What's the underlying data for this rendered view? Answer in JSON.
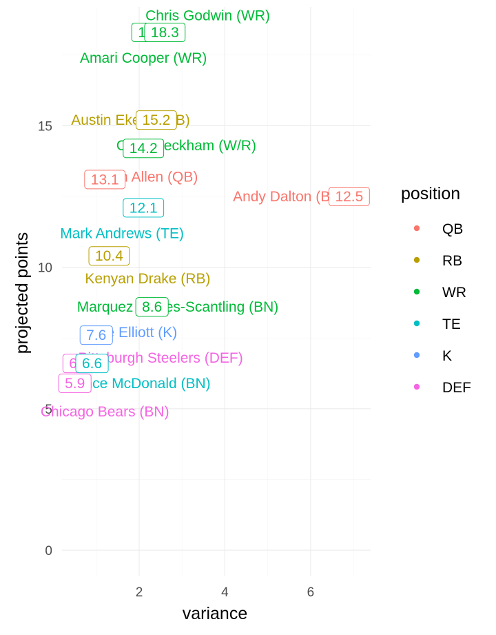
{
  "chart_data": {
    "type": "scatter",
    "title": "",
    "xlabel": "variance",
    "ylabel": "projected points",
    "xlim": [
      0.2,
      7.4
    ],
    "ylim": [
      -0.9,
      19.2
    ],
    "x_ticks": [
      2,
      4,
      6
    ],
    "y_ticks": [
      0,
      5,
      10,
      15
    ],
    "grid": true,
    "legend": {
      "title": "position",
      "placement": "right",
      "entries": [
        {
          "name": "QB",
          "color": "#F8766D"
        },
        {
          "name": "RB",
          "color": "#B79F00"
        },
        {
          "name": "WR",
          "color": "#00BA38"
        },
        {
          "name": "TE",
          "color": "#00BFC4"
        },
        {
          "name": "K",
          "color": "#619CFF"
        },
        {
          "name": "DEF",
          "color": "#F564E3"
        }
      ]
    },
    "points": [
      {
        "label": "Chris Godwin (WR)",
        "position": "WR",
        "x": 2.3,
        "y": 18.3,
        "value_label": "18.3",
        "label_x": 3.6,
        "label_y": 18.9
      },
      {
        "label": "Amari Cooper (WR)",
        "position": "WR",
        "x": 2.6,
        "y": 18.3,
        "value_label": "18.3",
        "label_x": 2.1,
        "label_y": 17.4
      },
      {
        "label": "Austin Ekeler (RB)",
        "position": "RB",
        "x": 2.4,
        "y": 15.2,
        "value_label": "15.2",
        "label_x": 1.8,
        "label_y": 15.2
      },
      {
        "label": "Odell Beckham (W/R)",
        "position": "WR",
        "x": 2.1,
        "y": 14.2,
        "value_label": "14.2",
        "label_x": 3.1,
        "label_y": 14.3
      },
      {
        "label": "Josh Allen (QB)",
        "position": "QB",
        "x": 1.2,
        "y": 13.1,
        "value_label": "13.1",
        "label_x": 2.2,
        "label_y": 13.2
      },
      {
        "label": "Andy Dalton (BN)",
        "position": "QB",
        "x": 6.9,
        "y": 12.5,
        "value_label": "12.5",
        "label_x": 5.5,
        "label_y": 12.5
      },
      {
        "label": "Mark Andrews (TE)",
        "position": "TE",
        "x": 2.1,
        "y": 12.1,
        "value_label": "12.1",
        "label_x": 1.6,
        "label_y": 11.2
      },
      {
        "label": "Kenyan Drake (RB)",
        "position": "RB",
        "x": 1.3,
        "y": 10.4,
        "value_label": "10.4",
        "label_x": 2.2,
        "label_y": 9.6
      },
      {
        "label": "Marquez Valdes-Scantling (BN)",
        "position": "WR",
        "x": 2.3,
        "y": 8.6,
        "value_label": "8.6",
        "label_x": 2.9,
        "label_y": 8.6
      },
      {
        "label": "Jake Elliott (K)",
        "position": "K",
        "x": 1.0,
        "y": 7.6,
        "value_label": "7.6",
        "label_x": 1.8,
        "label_y": 7.7
      },
      {
        "label": "Pittsburgh Steelers (DEF)",
        "position": "DEF",
        "x": 0.6,
        "y": 6.6,
        "value_label": "6.6",
        "label_x": 2.5,
        "label_y": 6.8
      },
      {
        "label": "Vance McDonald (BN)",
        "position": "TE",
        "x": 0.9,
        "y": 6.6,
        "value_label": "6.6",
        "label_x": 2.0,
        "label_y": 5.9
      },
      {
        "label": "Chicago Bears (BN)",
        "position": "DEF",
        "x": 0.5,
        "y": 5.9,
        "value_label": "5.9",
        "label_x": 1.2,
        "label_y": 4.9
      }
    ]
  }
}
